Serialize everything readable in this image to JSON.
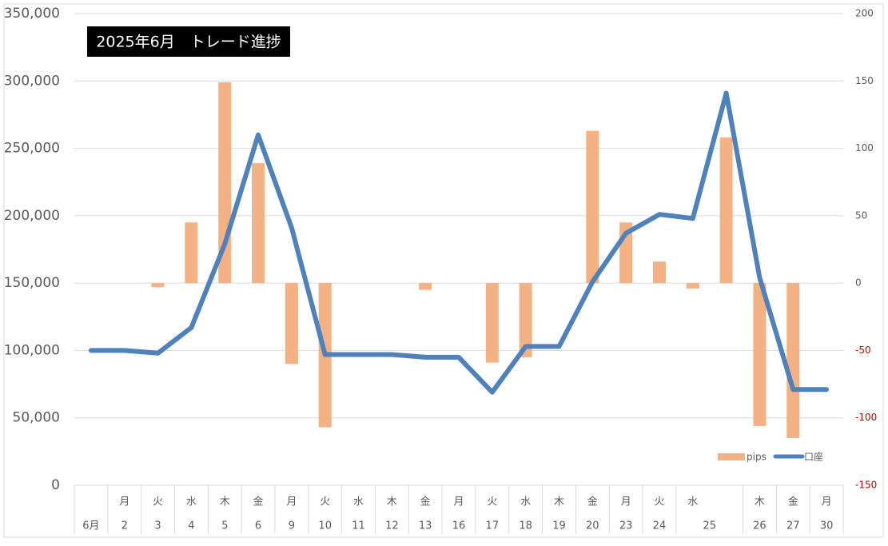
{
  "chart_data": {
    "type": "bar-line",
    "title": "2025年6月　トレード進捗",
    "weekdays": [
      null,
      "月",
      "火",
      "水",
      "木",
      "金",
      "月",
      "火",
      "水",
      "木",
      "金",
      "月",
      "火",
      "水",
      "木",
      "金",
      "月",
      "火",
      "水",
      null,
      "木",
      "金",
      "月"
    ],
    "categories": [
      "6月",
      "2",
      "3",
      "4",
      "5",
      "6",
      "9",
      "10",
      "11",
      "12",
      "13",
      "16",
      "17",
      "18",
      "19",
      "20",
      "23",
      "24",
      "25",
      null,
      "26",
      "27",
      "30"
    ],
    "series": [
      {
        "name": "pips",
        "type": "bar",
        "axis": "y2",
        "color": "#f4b183",
        "values": [
          null,
          null,
          -3,
          45,
          149,
          89,
          -60,
          -107,
          null,
          null,
          -5,
          null,
          -59,
          -55,
          null,
          113,
          45,
          16,
          -4,
          108,
          -106,
          -115,
          null
        ]
      },
      {
        "name": "口座",
        "type": "line",
        "axis": "y",
        "color": "#4f81bd",
        "values": [
          100000,
          100000,
          98000,
          117000,
          179000,
          260000,
          191000,
          97000,
          97000,
          97000,
          95000,
          95000,
          69000,
          103000,
          103000,
          151000,
          187000,
          201000,
          198000,
          291000,
          154000,
          71000,
          71000
        ]
      }
    ],
    "ylim": [
      0,
      350000
    ],
    "yticks": [
      0,
      {
        "value": 50000,
        "label": "50,000"
      },
      {
        "value": 100000,
        "label": "100,000"
      },
      {
        "value": 150000,
        "label": "150,000"
      },
      {
        "value": 200000,
        "label": "200,000"
      },
      {
        "value": 250000,
        "label": "250,000"
      },
      {
        "value": 300000,
        "label": "300,000"
      },
      {
        "value": 350000,
        "label": "350,000"
      }
    ],
    "y2lim": [
      -150,
      200
    ],
    "y2ticks": [
      -150,
      -100,
      -50,
      0,
      50,
      100,
      150,
      200
    ],
    "negative_tick_color": "#c00000",
    "grid": true,
    "legend": "bottom-right"
  }
}
